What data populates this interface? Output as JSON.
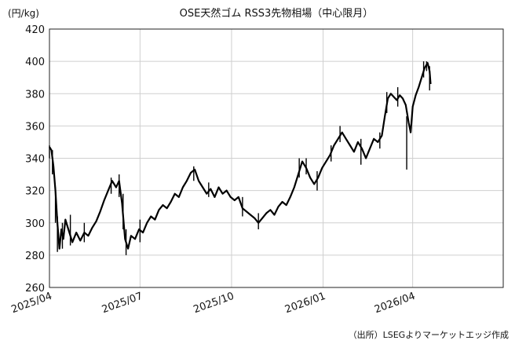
{
  "chart_data": {
    "type": "line",
    "title": "OSE天然ゴム RSS3先物相場（中心限月）",
    "unit_label": "(円/kg)",
    "source": "（出所）LSEGよりマーケットエッジ作成",
    "ylim": [
      260,
      420
    ],
    "yticks": [
      260,
      280,
      300,
      320,
      340,
      360,
      380,
      400,
      420
    ],
    "ytick_labels": [
      "260",
      "280",
      "300",
      "320",
      "340",
      "360",
      "380",
      "400",
      "420"
    ],
    "xlim": [
      "2025-04-01",
      "2026-07-01"
    ],
    "xticks": [
      "2025-04-01",
      "2025-07-01",
      "2025-10-01",
      "2026-01-01",
      "2026-04-01",
      "2026-07-01"
    ],
    "xtick_labels": [
      "2025/04",
      "2025/07",
      "2025/10",
      "2026/01",
      "2026/04"
    ],
    "grid": true,
    "line_color": "#000000",
    "series": [
      {
        "points": [
          [
            "2025-04-01",
            347
          ],
          [
            "2025-04-03",
            345
          ],
          [
            "2025-04-05",
            335
          ],
          [
            "2025-04-07",
            320
          ],
          [
            "2025-04-09",
            300
          ],
          [
            "2025-04-11",
            284
          ],
          [
            "2025-04-13",
            296
          ],
          [
            "2025-04-15",
            290
          ],
          [
            "2025-04-17",
            302
          ],
          [
            "2025-04-20",
            296
          ],
          [
            "2025-04-24",
            288
          ],
          [
            "2025-04-28",
            294
          ],
          [
            "2025-05-02",
            289
          ],
          [
            "2025-05-06",
            294
          ],
          [
            "2025-05-10",
            292
          ],
          [
            "2025-05-14",
            297
          ],
          [
            "2025-05-18",
            301
          ],
          [
            "2025-05-22",
            307
          ],
          [
            "2025-05-26",
            314
          ],
          [
            "2025-05-30",
            320
          ],
          [
            "2025-06-03",
            326
          ],
          [
            "2025-06-07",
            322
          ],
          [
            "2025-06-10",
            326
          ],
          [
            "2025-06-13",
            312
          ],
          [
            "2025-06-16",
            290
          ],
          [
            "2025-06-19",
            284
          ],
          [
            "2025-06-22",
            292
          ],
          [
            "2025-06-26",
            290
          ],
          [
            "2025-06-30",
            296
          ],
          [
            "2025-07-04",
            294
          ],
          [
            "2025-07-08",
            300
          ],
          [
            "2025-07-12",
            304
          ],
          [
            "2025-07-16",
            302
          ],
          [
            "2025-07-20",
            308
          ],
          [
            "2025-07-24",
            311
          ],
          [
            "2025-07-28",
            309
          ],
          [
            "2025-08-01",
            313
          ],
          [
            "2025-08-05",
            318
          ],
          [
            "2025-08-09",
            316
          ],
          [
            "2025-08-13",
            322
          ],
          [
            "2025-08-17",
            326
          ],
          [
            "2025-08-21",
            331
          ],
          [
            "2025-08-25",
            333
          ],
          [
            "2025-08-29",
            326
          ],
          [
            "2025-09-02",
            322
          ],
          [
            "2025-09-06",
            318
          ],
          [
            "2025-09-10",
            321
          ],
          [
            "2025-09-14",
            316
          ],
          [
            "2025-09-18",
            322
          ],
          [
            "2025-09-22",
            318
          ],
          [
            "2025-09-26",
            320
          ],
          [
            "2025-09-30",
            316
          ],
          [
            "2025-10-04",
            314
          ],
          [
            "2025-10-08",
            316
          ],
          [
            "2025-10-12",
            309
          ],
          [
            "2025-10-16",
            307
          ],
          [
            "2025-10-20",
            305
          ],
          [
            "2025-10-24",
            303
          ],
          [
            "2025-10-28",
            300
          ],
          [
            "2025-11-01",
            303
          ],
          [
            "2025-11-05",
            306
          ],
          [
            "2025-11-09",
            308
          ],
          [
            "2025-11-13",
            305
          ],
          [
            "2025-11-17",
            310
          ],
          [
            "2025-11-21",
            313
          ],
          [
            "2025-11-25",
            311
          ],
          [
            "2025-11-29",
            316
          ],
          [
            "2025-12-03",
            322
          ],
          [
            "2025-12-07",
            330
          ],
          [
            "2025-12-11",
            338
          ],
          [
            "2025-12-15",
            334
          ],
          [
            "2025-12-19",
            328
          ],
          [
            "2025-12-23",
            324
          ],
          [
            "2025-12-27",
            328
          ],
          [
            "2025-12-31",
            334
          ],
          [
            "2026-01-04",
            338
          ],
          [
            "2026-01-08",
            342
          ],
          [
            "2026-01-12",
            348
          ],
          [
            "2026-01-16",
            352
          ],
          [
            "2026-01-20",
            356
          ],
          [
            "2026-01-24",
            352
          ],
          [
            "2026-01-28",
            348
          ],
          [
            "2026-02-01",
            344
          ],
          [
            "2026-02-05",
            350
          ],
          [
            "2026-02-09",
            346
          ],
          [
            "2026-02-13",
            340
          ],
          [
            "2026-02-17",
            346
          ],
          [
            "2026-02-21",
            352
          ],
          [
            "2026-02-25",
            350
          ],
          [
            "2026-03-01",
            354
          ],
          [
            "2026-03-04",
            366
          ],
          [
            "2026-03-07",
            377
          ],
          [
            "2026-03-10",
            380
          ],
          [
            "2026-03-13",
            378
          ],
          [
            "2026-03-16",
            376
          ],
          [
            "2026-03-19",
            379
          ],
          [
            "2026-03-22",
            377
          ],
          [
            "2026-03-25",
            373
          ],
          [
            "2026-03-28",
            362
          ],
          [
            "2026-03-30",
            356
          ],
          [
            "2026-04-01",
            372
          ],
          [
            "2026-04-04",
            379
          ],
          [
            "2026-04-07",
            384
          ],
          [
            "2026-04-10",
            390
          ],
          [
            "2026-04-13",
            396
          ],
          [
            "2026-04-16",
            399
          ],
          [
            "2026-04-18",
            394
          ],
          [
            "2026-04-19",
            386
          ]
        ],
        "ranges": [
          [
            "2025-04-01",
            340,
            348
          ],
          [
            "2025-04-04",
            330,
            345
          ],
          [
            "2025-04-07",
            300,
            322
          ],
          [
            "2025-04-09",
            282,
            304
          ],
          [
            "2025-04-14",
            284,
            300
          ],
          [
            "2025-04-22",
            286,
            305
          ],
          [
            "2025-05-06",
            288,
            300
          ],
          [
            "2025-06-02",
            318,
            328
          ],
          [
            "2025-06-10",
            316,
            330
          ],
          [
            "2025-06-14",
            296,
            318
          ],
          [
            "2025-06-17",
            280,
            296
          ],
          [
            "2025-07-01",
            288,
            302
          ],
          [
            "2025-08-24",
            326,
            335
          ],
          [
            "2025-09-08",
            316,
            325
          ],
          [
            "2025-10-12",
            304,
            316
          ],
          [
            "2025-10-28",
            296,
            306
          ],
          [
            "2025-12-08",
            328,
            340
          ],
          [
            "2025-12-15",
            330,
            340
          ],
          [
            "2025-12-26",
            320,
            332
          ],
          [
            "2026-01-09",
            338,
            348
          ],
          [
            "2026-01-18",
            350,
            360
          ],
          [
            "2026-02-08",
            336,
            352
          ],
          [
            "2026-02-27",
            346,
            356
          ],
          [
            "2026-03-06",
            368,
            381
          ],
          [
            "2026-03-17",
            372,
            384
          ],
          [
            "2026-03-26",
            333,
            366
          ],
          [
            "2026-04-12",
            390,
            400
          ],
          [
            "2026-04-15",
            394,
            400
          ],
          [
            "2026-04-18",
            382,
            397
          ]
        ]
      }
    ]
  }
}
